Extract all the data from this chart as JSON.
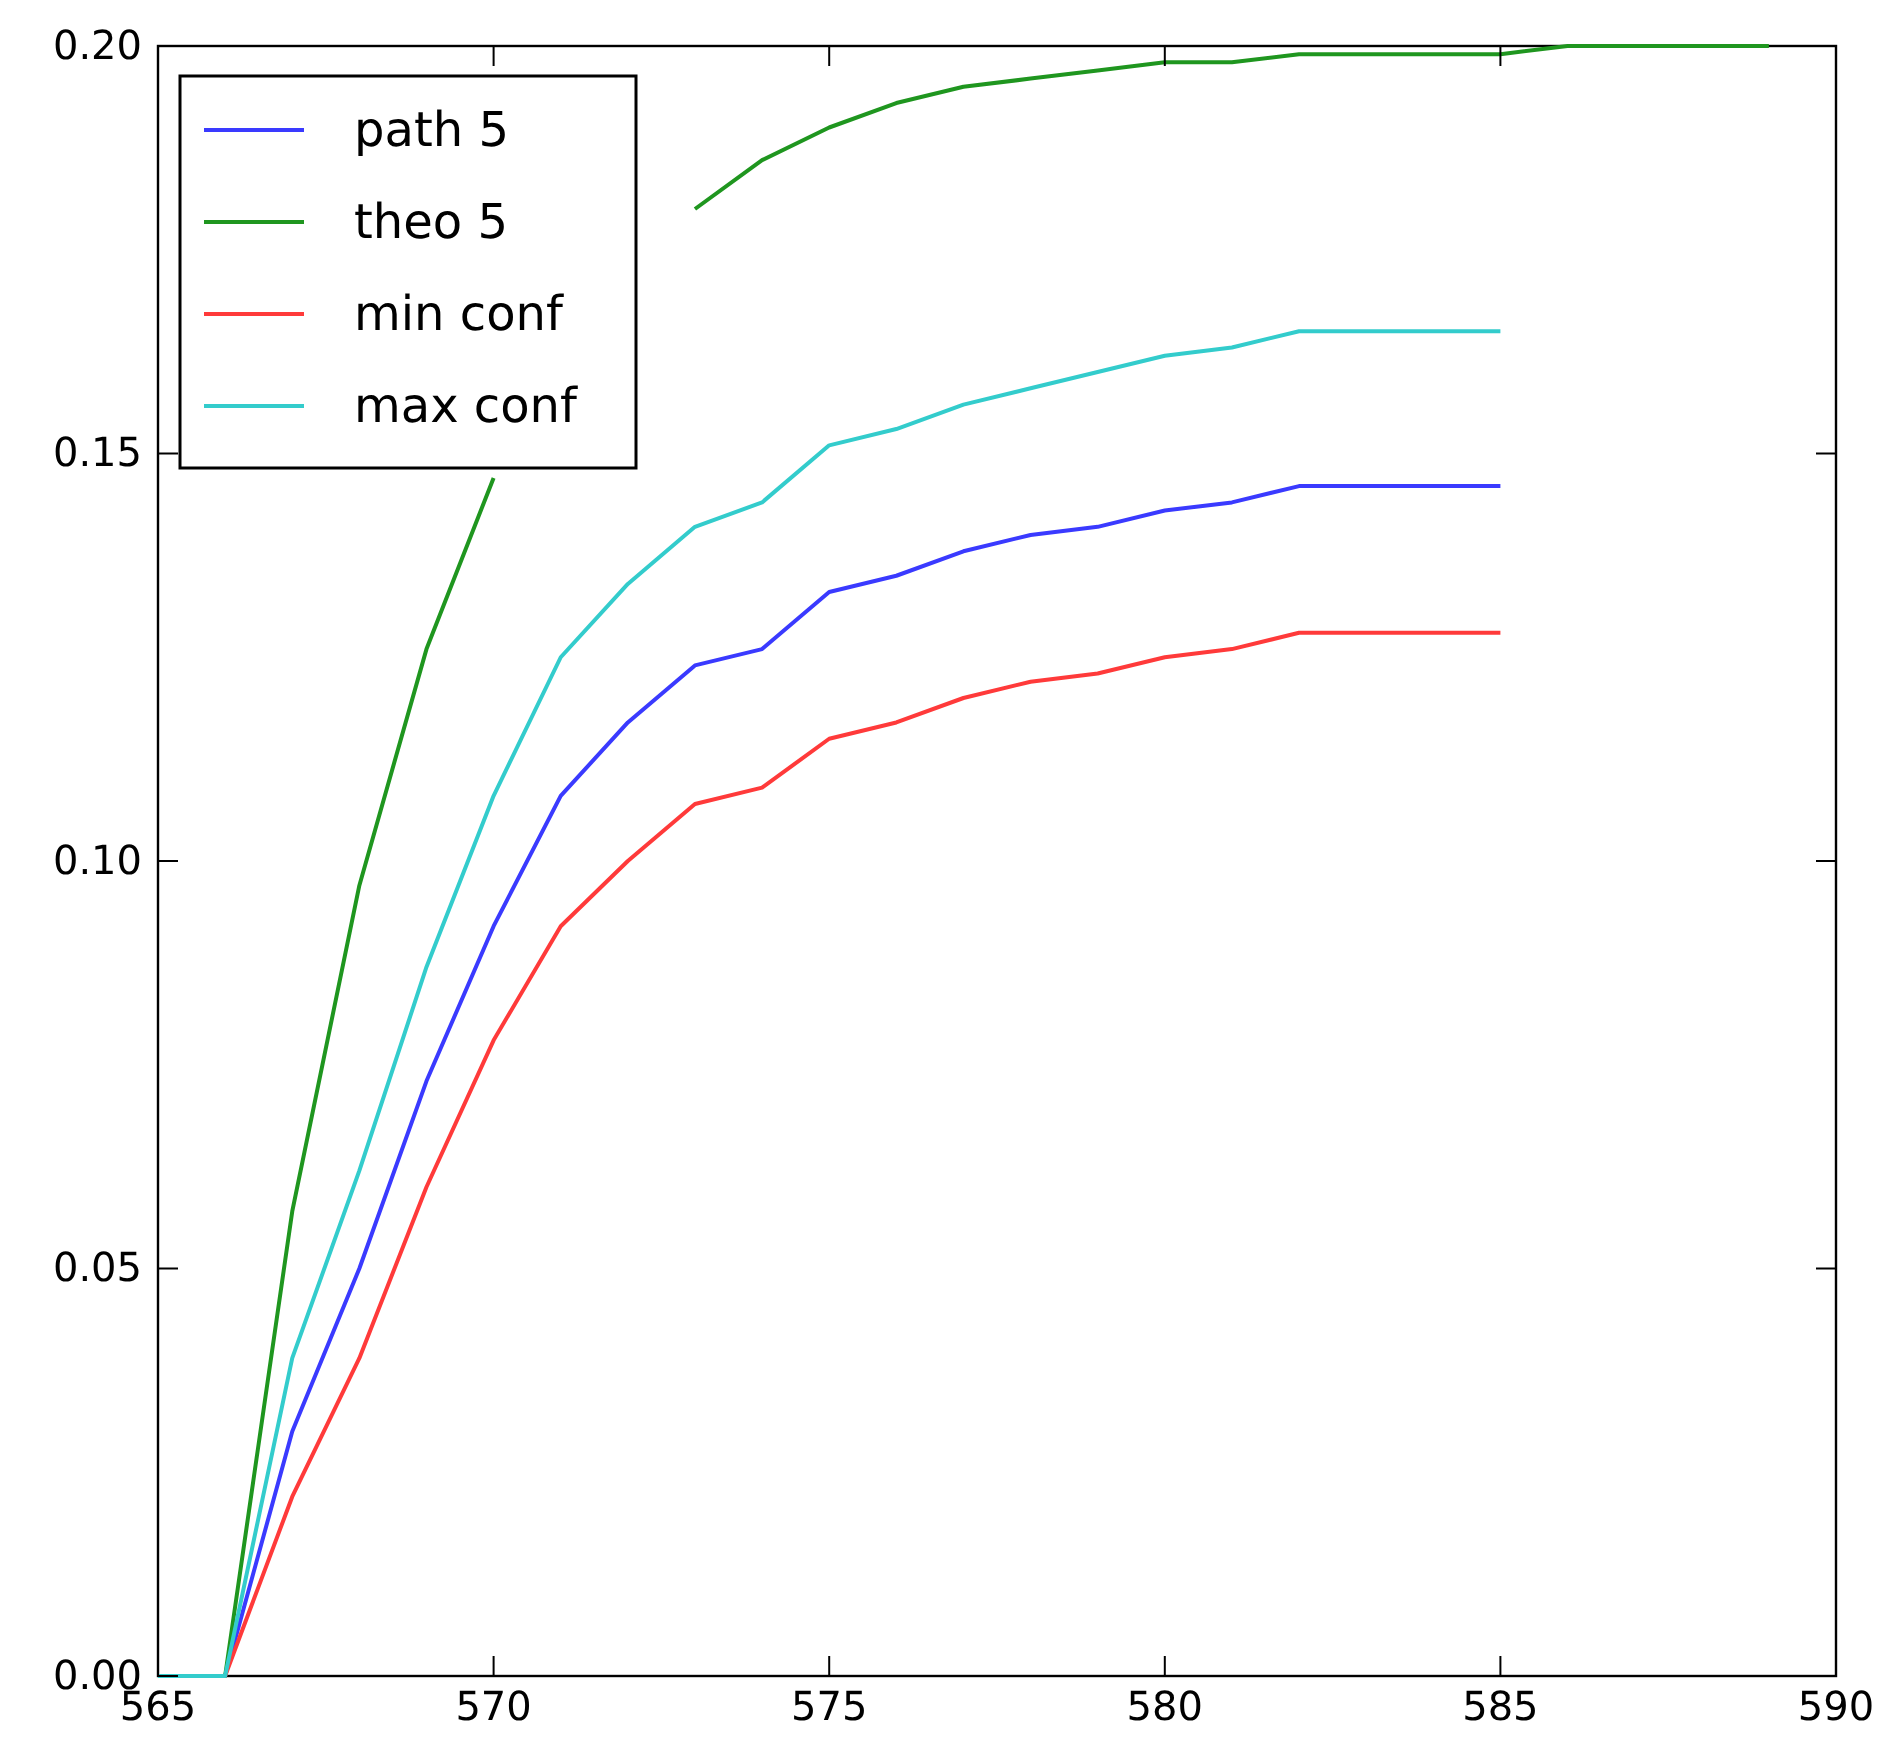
{
  "chart_data": {
    "type": "line",
    "x": [
      565,
      566,
      567,
      568,
      569,
      570,
      571,
      572,
      573,
      574,
      575,
      576,
      577,
      578,
      579,
      580,
      581,
      582,
      583,
      584,
      585
    ],
    "series": [
      {
        "name": "path 5",
        "color": "#3a3aff",
        "values": [
          0,
          0,
          0.03,
          0.05,
          0.073,
          0.092,
          0.108,
          0.117,
          0.124,
          0.126,
          0.133,
          0.135,
          0.138,
          0.14,
          0.141,
          0.143,
          0.144,
          0.146,
          0.146,
          0.146,
          0.146
        ]
      },
      {
        "name": "theo 5",
        "color": "#1f961f",
        "x": [
          565,
          566,
          567,
          568,
          569,
          570,
          571,
          572,
          573,
          574,
          575,
          576,
          577,
          578,
          579,
          580,
          581,
          582,
          583,
          584,
          585,
          586,
          587,
          588,
          589
        ],
        "values": [
          0,
          0,
          0.057,
          0.097,
          0.126,
          0.147,
          null,
          null,
          0.18,
          0.186,
          0.19,
          0.193,
          0.195,
          0.196,
          0.197,
          0.198,
          0.198,
          0.199,
          0.199,
          0.199,
          0.199,
          0.2,
          0.2,
          0.2,
          0.2
        ]
      },
      {
        "name": "min conf",
        "color": "#ff3a3a",
        "values": [
          0,
          0,
          0.022,
          0.039,
          0.06,
          0.078,
          0.092,
          0.1,
          0.107,
          0.109,
          0.115,
          0.117,
          0.12,
          0.122,
          0.123,
          0.125,
          0.126,
          0.128,
          0.128,
          0.128,
          0.128
        ]
      },
      {
        "name": "max conf",
        "color": "#33cccc",
        "values": [
          0,
          0,
          0.039,
          0.062,
          0.087,
          0.108,
          0.125,
          0.134,
          0.141,
          0.144,
          0.151,
          0.153,
          0.156,
          0.158,
          0.16,
          0.162,
          0.163,
          0.165,
          0.165,
          0.165,
          0.165
        ]
      }
    ],
    "xlim": [
      565,
      590
    ],
    "xticks": [
      565,
      570,
      575,
      580,
      585,
      590
    ],
    "ylim": [
      0,
      0.2
    ],
    "yticks": [
      {
        "value": 0,
        "label": "0.00"
      },
      {
        "value": 0.05,
        "label": "0.05"
      },
      {
        "value": 0.1,
        "label": "0.10"
      },
      {
        "value": 0.15,
        "label": "0.15"
      },
      {
        "value": 0.2,
        "label": "0.20"
      }
    ],
    "legend": "top left",
    "grid": false,
    "marker": "none",
    "line_style": "solid"
  }
}
